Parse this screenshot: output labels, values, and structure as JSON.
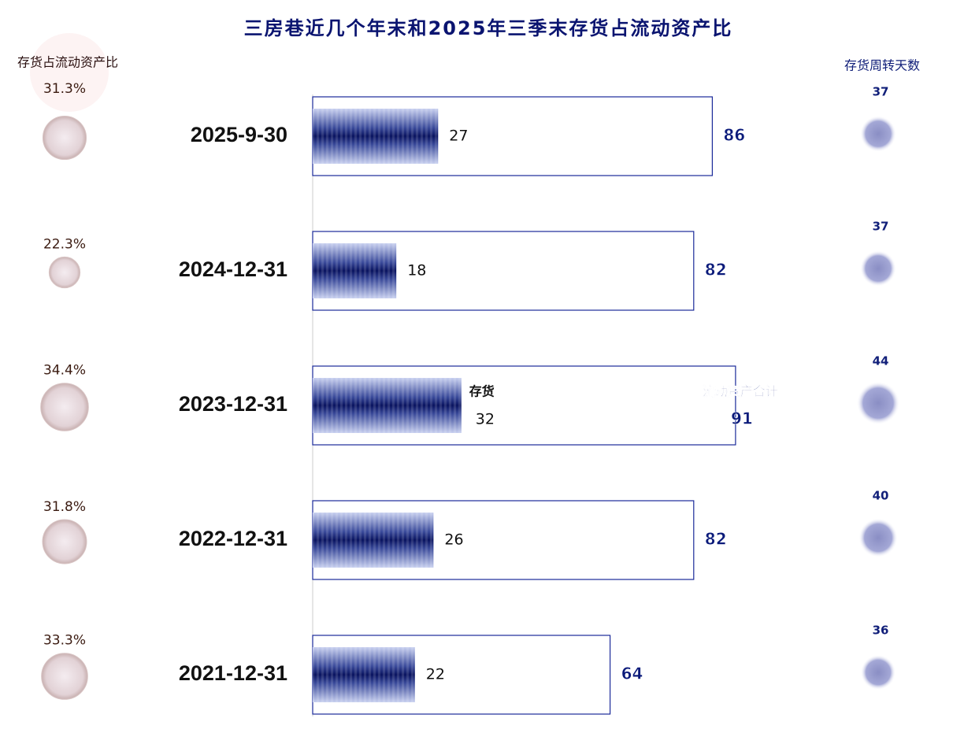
{
  "chart_data": {
    "type": "bar",
    "title": "三房巷近几个年末和2025年三季末存货占流动资产比",
    "categories": [
      "2025-9-30",
      "2024-12-31",
      "2023-12-31",
      "2022-12-31",
      "2021-12-31"
    ],
    "series": [
      {
        "name": "存货",
        "color": "#0a1a6e",
        "values": [
          27,
          18,
          32,
          26,
          22
        ]
      },
      {
        "name": "流动资产合计",
        "color": "#1a2a9a",
        "values": [
          86,
          82,
          91,
          82,
          64
        ]
      }
    ],
    "ratio": {
      "name": "存货占流动资产比",
      "color": "#e4d2d2",
      "values": [
        31.3,
        22.3,
        34.4,
        31.8,
        33.3
      ],
      "value_labels": [
        "31.3%",
        "22.3%",
        "34.4%",
        "31.8%",
        "33.3%"
      ]
    },
    "turnover": {
      "name": "存货周转天数",
      "color": "#8e92c8",
      "values": [
        37,
        37,
        44,
        40,
        36
      ]
    }
  }
}
